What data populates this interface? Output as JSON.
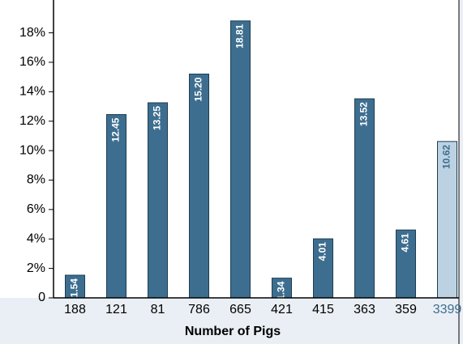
{
  "chart_data": {
    "type": "bar",
    "x_label": "Number of Pigs",
    "categories": [
      "188",
      "121",
      "81",
      "786",
      "665",
      "421",
      "415",
      "363",
      "359",
      "3399"
    ],
    "values": [
      1.54,
      12.45,
      13.25,
      15.2,
      18.81,
      1.34,
      4.01,
      13.52,
      4.61,
      10.62
    ],
    "value_labels": [
      "1.54",
      "12.45",
      "13.25",
      "15.20",
      "18.81",
      "1.34",
      "4.01",
      "13.52",
      "4.61",
      "10.62"
    ],
    "colors": [
      "#3d6e8f",
      "#3d6e8f",
      "#3d6e8f",
      "#3d6e8f",
      "#3d6e8f",
      "#3d6e8f",
      "#3d6e8f",
      "#3d6e8f",
      "#3d6e8f",
      "#bcd2e3"
    ],
    "value_label_colors": [
      "#ffffff",
      "#ffffff",
      "#ffffff",
      "#ffffff",
      "#ffffff",
      "#ffffff",
      "#ffffff",
      "#ffffff",
      "#ffffff",
      "#3d6e8f"
    ],
    "category_label_colors": [
      "#000000",
      "#000000",
      "#000000",
      "#000000",
      "#000000",
      "#000000",
      "#000000",
      "#000000",
      "#000000",
      "#3d6e8f"
    ],
    "ylim": [
      0,
      19.9
    ],
    "yticks": [
      0,
      {
        "value": 2,
        "label": "2%"
      },
      {
        "value": 4,
        "label": "4%"
      },
      {
        "value": 6,
        "label": "6%"
      },
      {
        "value": 8,
        "label": "8%"
      },
      {
        "value": 10,
        "label": "10%"
      },
      {
        "value": 12,
        "label": "12%"
      },
      {
        "value": 14,
        "label": "14%"
      },
      {
        "value": 16,
        "label": "16%"
      },
      {
        "value": 18,
        "label": "18%"
      }
    ],
    "grid": false
  }
}
